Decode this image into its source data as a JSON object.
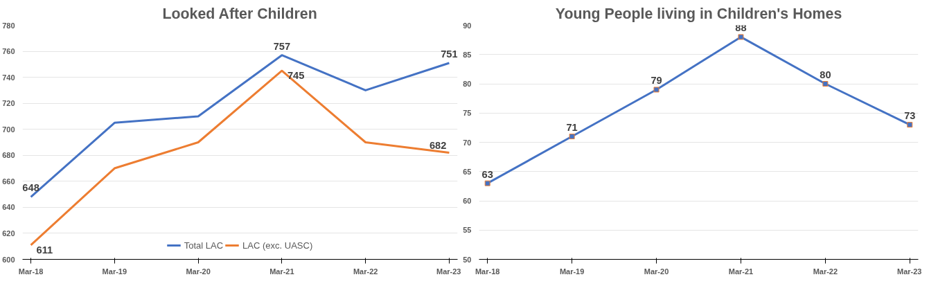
{
  "chart_data": [
    {
      "type": "line",
      "title": "Looked After Children",
      "categories": [
        "Mar-18",
        "Mar-19",
        "Mar-20",
        "Mar-21",
        "Mar-22",
        "Mar-23"
      ],
      "series": [
        {
          "name": "Total LAC",
          "color": "#4472c4",
          "values": [
            648,
            705,
            710,
            757,
            730,
            751
          ],
          "value_labels": [
            "648",
            null,
            null,
            "757",
            null,
            "751"
          ]
        },
        {
          "name": "LAC (exc. UASC)",
          "color": "#ed7d31",
          "values": [
            611,
            670,
            690,
            745,
            690,
            682
          ],
          "value_labels": [
            "611",
            null,
            null,
            "745",
            null,
            "682"
          ]
        }
      ],
      "ylim": [
        600,
        780
      ],
      "yticks": [
        600,
        620,
        640,
        660,
        680,
        700,
        720,
        740,
        760,
        780
      ],
      "grid": "y",
      "legend": "bottom",
      "marker": "none"
    },
    {
      "type": "line",
      "title": "Young People living in Children's Homes",
      "categories": [
        "Mar-18",
        "Mar-19",
        "Mar-20",
        "Mar-21",
        "Mar-22",
        "Mar-23"
      ],
      "series": [
        {
          "color": "#4472c4",
          "values": [
            63,
            71,
            79,
            88,
            80,
            73
          ]
        }
      ],
      "ylim": [
        50,
        90
      ],
      "yticks": [
        50,
        55,
        60,
        65,
        70,
        75,
        80,
        85,
        90
      ],
      "grid": "y",
      "marker": "square",
      "data_labels": true
    }
  ]
}
